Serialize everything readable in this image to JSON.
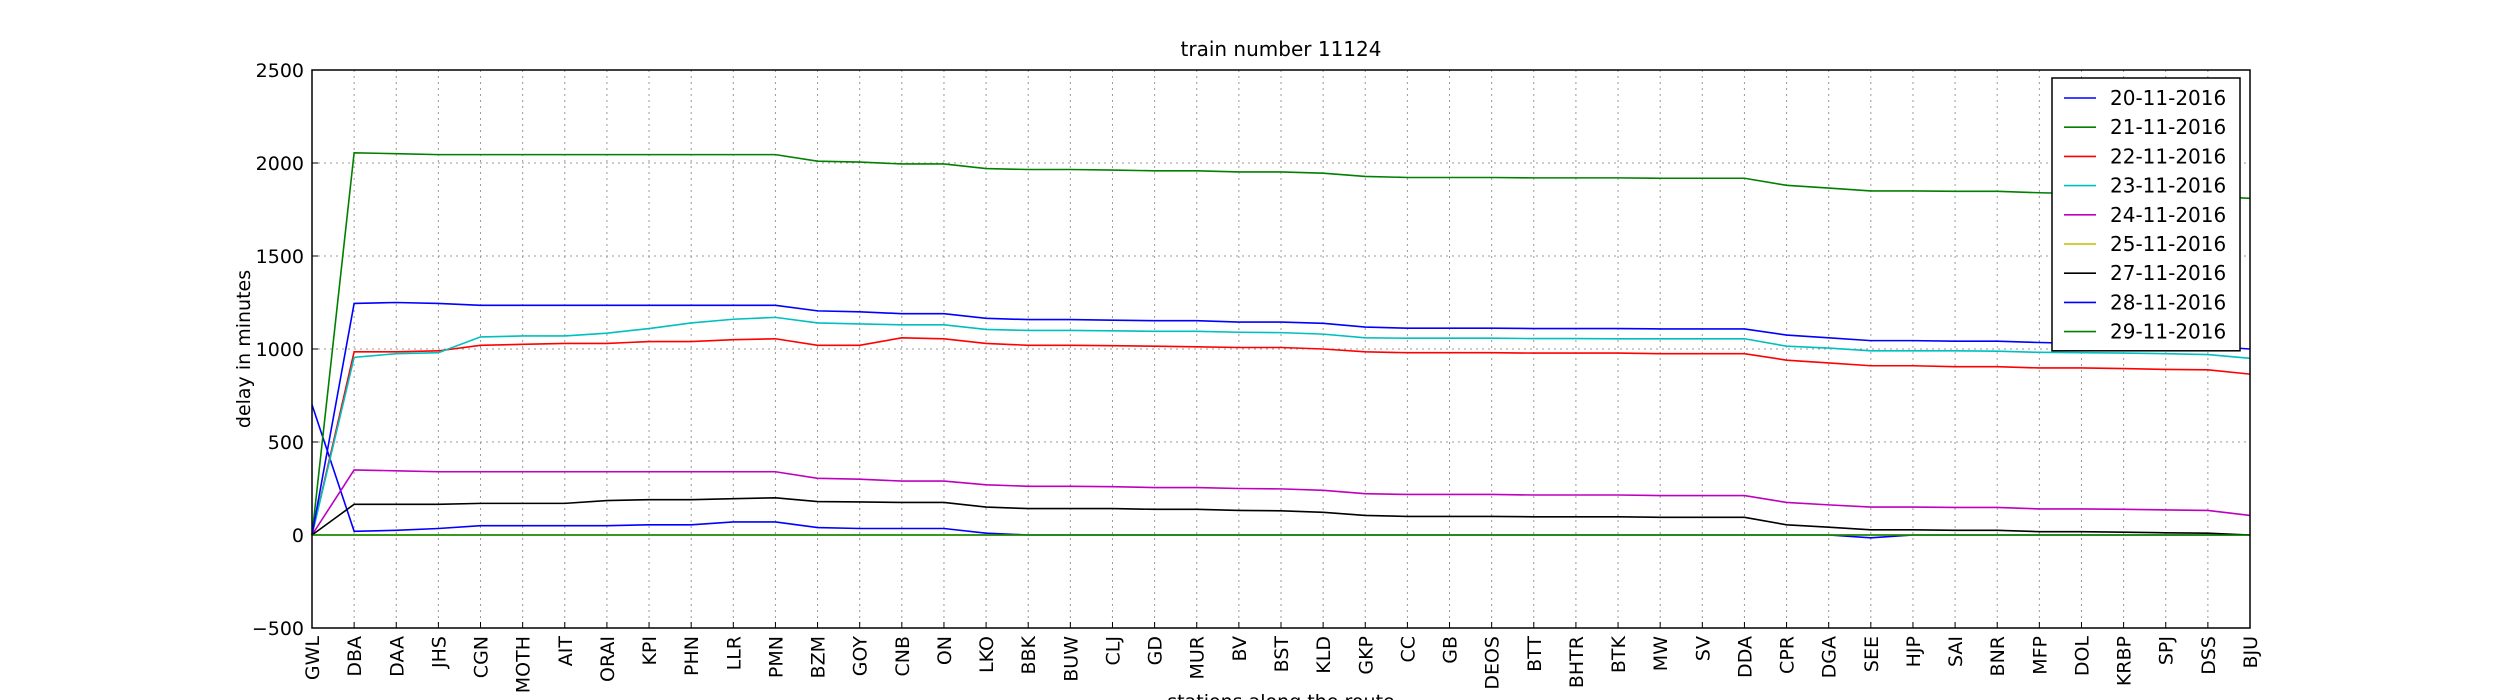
{
  "chart_data": {
    "type": "line",
    "title": "train number 11124",
    "x_label": "stations along the route",
    "y_label": "delay in minutes",
    "categories": [
      "GWL",
      "DBA",
      "DAA",
      "JHS",
      "CGN",
      "MOTH",
      "AIT",
      "ORAI",
      "KPI",
      "PHN",
      "LLR",
      "PMN",
      "BZM",
      "GOY",
      "CNB",
      "ON",
      "LKO",
      "BBK",
      "BUW",
      "CLJ",
      "GD",
      "MUR",
      "BV",
      "BST",
      "KLD",
      "GKP",
      "CC",
      "GB",
      "DEOS",
      "BTT",
      "BHTR",
      "BTK",
      "MW",
      "SV",
      "DDA",
      "CPR",
      "DGA",
      "SEE",
      "HJP",
      "SAI",
      "BNR",
      "MFP",
      "DOL",
      "KRBP",
      "SPJ",
      "DSS",
      "BJU"
    ],
    "ylim": [
      -500,
      2500
    ],
    "yticks": [
      {
        "value": -500,
        "label": "−500"
      },
      0,
      500,
      1000,
      1500,
      2000,
      2500
    ],
    "grid": true,
    "legend": "upper right",
    "series": [
      {
        "name": "20-11-2016",
        "color": "#0000ff",
        "values": [
          700,
          20,
          25,
          35,
          50,
          50,
          50,
          50,
          55,
          55,
          70,
          70,
          40,
          35,
          35,
          35,
          10,
          0,
          0,
          0,
          0,
          0,
          0,
          0,
          0,
          0,
          0,
          0,
          0,
          0,
          0,
          0,
          0,
          0,
          0,
          0,
          0,
          -15,
          0,
          0,
          0,
          0,
          0,
          0,
          0,
          0,
          0
        ]
      },
      {
        "name": "21-11-2016",
        "color": "#008000",
        "values": [
          0,
          2055,
          2050,
          2045,
          2045,
          2045,
          2045,
          2045,
          2045,
          2045,
          2045,
          2045,
          2010,
          2005,
          1995,
          1995,
          1970,
          1965,
          1965,
          1962,
          1958,
          1958,
          1952,
          1952,
          1945,
          1928,
          1922,
          1922,
          1922,
          1920,
          1920,
          1920,
          1918,
          1918,
          1918,
          1880,
          1865,
          1850,
          1850,
          1848,
          1848,
          1840,
          1835,
          1830,
          1825,
          1820,
          1810
        ]
      },
      {
        "name": "22-11-2016",
        "color": "#ff0000",
        "values": [
          0,
          985,
          985,
          990,
          1020,
          1025,
          1030,
          1030,
          1040,
          1040,
          1050,
          1055,
          1020,
          1020,
          1060,
          1055,
          1030,
          1020,
          1020,
          1018,
          1015,
          1012,
          1008,
          1008,
          1000,
          985,
          980,
          980,
          980,
          978,
          978,
          978,
          975,
          975,
          975,
          940,
          925,
          910,
          910,
          905,
          905,
          898,
          898,
          895,
          890,
          888,
          865
        ]
      },
      {
        "name": "23-11-2016",
        "color": "#00bfbf",
        "values": [
          0,
          955,
          975,
          980,
          1065,
          1070,
          1070,
          1085,
          1110,
          1140,
          1160,
          1170,
          1140,
          1135,
          1130,
          1130,
          1105,
          1100,
          1100,
          1098,
          1095,
          1095,
          1090,
          1088,
          1080,
          1060,
          1058,
          1058,
          1058,
          1056,
          1056,
          1055,
          1055,
          1055,
          1055,
          1015,
          1005,
          990,
          990,
          990,
          988,
          982,
          980,
          978,
          975,
          970,
          950
        ]
      },
      {
        "name": "24-11-2016",
        "color": "#bf00bf",
        "values": [
          0,
          350,
          345,
          340,
          340,
          340,
          340,
          340,
          340,
          340,
          340,
          340,
          305,
          300,
          290,
          290,
          270,
          262,
          262,
          260,
          255,
          255,
          250,
          248,
          240,
          222,
          218,
          218,
          218,
          215,
          215,
          215,
          212,
          212,
          212,
          175,
          162,
          150,
          150,
          148,
          148,
          140,
          140,
          138,
          135,
          132,
          105
        ]
      },
      {
        "name": "25-11-2016",
        "color": "#bfbf00",
        "values": [
          0,
          0,
          0,
          0,
          0,
          0,
          0,
          0,
          0,
          0,
          0,
          0,
          0,
          0,
          0,
          0,
          0,
          0,
          0,
          0,
          0,
          0,
          0,
          0,
          0,
          0,
          0,
          0,
          0,
          0,
          0,
          0,
          0,
          0,
          0,
          0,
          0,
          0,
          0,
          0,
          0,
          0,
          0,
          0,
          0,
          0,
          0
        ]
      },
      {
        "name": "27-11-2016",
        "color": "#000000",
        "values": [
          0,
          165,
          165,
          165,
          170,
          170,
          170,
          185,
          190,
          190,
          195,
          200,
          180,
          178,
          175,
          175,
          150,
          142,
          142,
          142,
          138,
          138,
          132,
          130,
          122,
          105,
          100,
          100,
          100,
          98,
          98,
          98,
          95,
          95,
          95,
          55,
          42,
          28,
          28,
          25,
          25,
          18,
          18,
          15,
          12,
          10,
          0
        ]
      },
      {
        "name": "28-11-2016",
        "color": "#0000ff",
        "values": [
          0,
          1245,
          1250,
          1245,
          1235,
          1235,
          1235,
          1235,
          1235,
          1235,
          1235,
          1235,
          1205,
          1200,
          1190,
          1190,
          1165,
          1158,
          1158,
          1155,
          1152,
          1152,
          1145,
          1145,
          1138,
          1118,
          1112,
          1112,
          1112,
          1110,
          1110,
          1110,
          1108,
          1108,
          1108,
          1075,
          1060,
          1045,
          1045,
          1042,
          1042,
          1035,
          1030,
          1025,
          1020,
          1015,
          1000
        ]
      },
      {
        "name": "29-11-2016",
        "color": "#008000",
        "values": [
          0,
          0,
          0,
          0,
          0,
          0,
          0,
          0,
          0,
          0,
          0,
          0,
          0,
          0,
          0,
          0,
          0,
          0,
          0,
          0,
          0,
          0,
          0,
          0,
          0,
          0,
          0,
          0,
          0,
          0,
          0,
          0,
          0,
          0,
          0,
          0,
          0,
          0,
          0,
          0,
          0,
          0,
          0,
          0,
          0,
          0,
          0
        ]
      }
    ]
  }
}
